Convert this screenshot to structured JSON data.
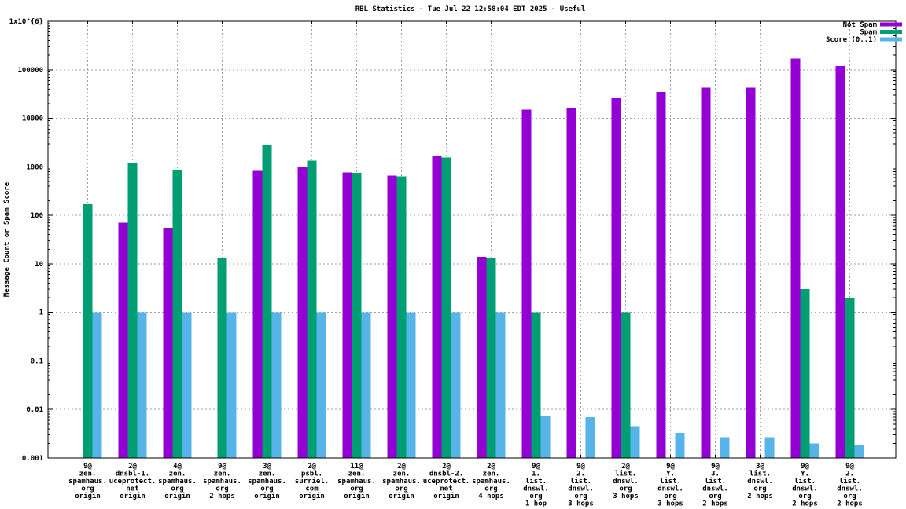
{
  "chart_data": {
    "type": "bar",
    "title": "RBL Statistics - Tue Jul 22 12:58:04 EDT 2025 - Useful",
    "ylabel": "Message Count or Spam Score",
    "scale_y": "log10",
    "ylim": [
      0.001,
      1000000
    ],
    "grid": true,
    "legend_position": "top-right-inside",
    "legend_entries": [
      "Not Spam",
      "Spam",
      "Score (0..1)"
    ],
    "yticks": [
      {
        "value": 1000000,
        "label": "1x10^{6}"
      },
      {
        "value": 100000,
        "label": "100000"
      },
      {
        "value": 10000,
        "label": "10000"
      },
      {
        "value": 1000,
        "label": "1000"
      },
      {
        "value": 100,
        "label": "100"
      },
      {
        "value": 10,
        "label": "10"
      },
      {
        "value": 1,
        "label": "1"
      },
      {
        "value": 0.1,
        "label": "0.1"
      },
      {
        "value": 0.01,
        "label": "0.01"
      },
      {
        "value": 0.001,
        "label": "0.001"
      }
    ],
    "categories": [
      [
        "9@",
        "zen.",
        "spamhaus.",
        "org",
        "origin"
      ],
      [
        "2@",
        "dnsbl-1.",
        "uceprotect.",
        "net",
        "origin"
      ],
      [
        "4@",
        "zen.",
        "spamhaus.",
        "org",
        "origin"
      ],
      [
        "9@",
        "zen.",
        "spamhaus.",
        "org",
        "2 hops"
      ],
      [
        "3@",
        "zen.",
        "spamhaus.",
        "org",
        "origin"
      ],
      [
        "2@",
        "psbl.",
        "surriel.",
        "com",
        "origin"
      ],
      [
        "11@",
        "zen.",
        "spamhaus.",
        "org",
        "origin"
      ],
      [
        "2@",
        "zen.",
        "spamhaus.",
        "org",
        "origin"
      ],
      [
        "2@",
        "dnsbl-2.",
        "uceprotect.",
        "net",
        "origin"
      ],
      [
        "2@",
        "zen.",
        "spamhaus.",
        "org",
        "4 hops"
      ],
      [
        "9@",
        "1.",
        "list.",
        "dnswl.",
        "org",
        "1 hop"
      ],
      [
        "9@",
        "2.",
        "list.",
        "dnswl.",
        "org",
        "3 hops"
      ],
      [
        "2@",
        "list.",
        "dnswl.",
        "org",
        "3 hops"
      ],
      [
        "9@",
        "Y.",
        "list.",
        "dnswl.",
        "org",
        "3 hops"
      ],
      [
        "9@",
        "3.",
        "list.",
        "dnswl.",
        "org",
        "2 hops"
      ],
      [
        "3@",
        "list.",
        "dnswl.",
        "org",
        "2 hops"
      ],
      [
        "9@",
        "Y.",
        "list.",
        "dnswl.",
        "org",
        "2 hops"
      ],
      [
        "9@",
        "2.",
        "list.",
        "dnswl.",
        "org",
        "2 hops"
      ]
    ],
    "series": [
      {
        "name": "Not Spam",
        "color": "#9400D3",
        "values": [
          null,
          70,
          55,
          null,
          830,
          980,
          770,
          660,
          1700,
          14,
          15000,
          16000,
          26000,
          35000,
          43000,
          43000,
          170000,
          120000
        ]
      },
      {
        "name": "Spam",
        "color": "#009E73",
        "values": [
          170,
          1200,
          880,
          13,
          2800,
          1350,
          750,
          630,
          1550,
          13,
          1,
          null,
          1,
          null,
          null,
          null,
          3,
          2
        ]
      },
      {
        "name": "Score (0..1)",
        "color": "#56B4E9",
        "values": [
          1,
          1,
          1,
          1,
          1,
          1,
          1,
          1,
          1,
          1,
          0.0075,
          0.007,
          0.0045,
          0.0033,
          0.0027,
          0.0027,
          0.002,
          0.0019
        ]
      }
    ],
    "colors": {
      "grid": "#a0a0a0",
      "axis": "#000000",
      "text": "#000000",
      "background": "#ffffff"
    }
  }
}
